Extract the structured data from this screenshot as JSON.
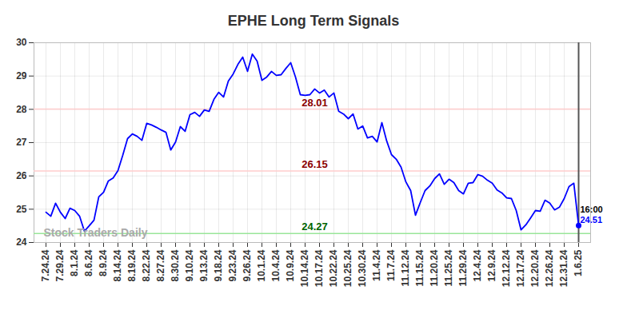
{
  "chart_data": {
    "type": "line",
    "title": "EPHE Long Term Signals",
    "categories": [
      "7.24.24",
      null,
      null,
      "7.29.24",
      null,
      null,
      "8.1.24",
      null,
      null,
      "8.6.24",
      null,
      null,
      "8.9.24",
      null,
      null,
      "8.14.24",
      null,
      null,
      "8.19.24",
      null,
      null,
      "8.22.24",
      null,
      null,
      "8.27.24",
      null,
      null,
      "8.30.24",
      null,
      null,
      "9.10.24",
      null,
      null,
      "9.13.24",
      null,
      null,
      "9.18.24",
      null,
      null,
      "9.23.24",
      null,
      null,
      "9.26.24",
      null,
      null,
      "10.1.24",
      null,
      null,
      "10.4.24",
      null,
      null,
      "10.9.24",
      null,
      null,
      "10.14.24",
      null,
      null,
      "10.17.24",
      null,
      null,
      "10.22.24",
      null,
      null,
      "10.25.24",
      null,
      null,
      "10.30.24",
      null,
      null,
      "11.4.24",
      null,
      null,
      "11.7.24",
      null,
      null,
      "11.12.24",
      null,
      null,
      "11.15.24",
      null,
      null,
      "11.20.24",
      null,
      null,
      "11.25.24",
      null,
      null,
      "11.29.24",
      null,
      null,
      "12.4.24",
      null,
      null,
      "12.9.24",
      null,
      null,
      "12.12.24",
      null,
      null,
      "12.17.24",
      null,
      null,
      "12.20.24",
      null,
      null,
      "12.26.24",
      null,
      null,
      "12.31.24",
      null,
      null,
      "1.6.25"
    ],
    "values": [
      24.91,
      24.79,
      25.18,
      24.91,
      24.72,
      25.03,
      24.96,
      24.79,
      24.34,
      24.5,
      24.67,
      25.37,
      25.51,
      25.85,
      25.94,
      26.16,
      26.62,
      27.12,
      27.26,
      27.19,
      27.07,
      27.58,
      27.53,
      27.46,
      27.38,
      27.31,
      26.78,
      27.02,
      27.48,
      27.34,
      27.84,
      27.91,
      27.79,
      27.98,
      27.94,
      28.3,
      28.51,
      28.37,
      28.85,
      29.06,
      29.35,
      29.57,
      29.14,
      29.66,
      29.45,
      28.87,
      28.97,
      29.14,
      29.02,
      29.04,
      29.23,
      29.4,
      28.97,
      28.44,
      28.42,
      28.44,
      28.61,
      28.49,
      28.58,
      28.37,
      28.49,
      27.94,
      27.86,
      27.72,
      27.86,
      27.41,
      27.5,
      27.14,
      27.19,
      27.02,
      27.6,
      27.05,
      26.64,
      26.5,
      26.26,
      25.82,
      25.56,
      24.82,
      25.2,
      25.56,
      25.7,
      25.92,
      26.06,
      25.75,
      25.9,
      25.8,
      25.56,
      25.46,
      25.78,
      25.8,
      26.04,
      25.99,
      25.87,
      25.78,
      25.58,
      25.49,
      25.34,
      25.32,
      24.96,
      24.38,
      24.53,
      24.74,
      24.96,
      24.94,
      25.27,
      25.18,
      24.98,
      25.06,
      25.32,
      25.68,
      25.78,
      24.51
    ],
    "color": "#0000ff",
    "ylim": [
      24,
      30
    ],
    "yticks": [
      24,
      25,
      26,
      27,
      28,
      29,
      30
    ],
    "grid": true,
    "reference_lines": [
      {
        "value": 28.01,
        "color": "#ffcccc",
        "label_color": "#8b0000"
      },
      {
        "value": 26.15,
        "color": "#ffcccc",
        "label_color": "#8b0000"
      },
      {
        "value": 24.27,
        "color": "#99e699",
        "label_color": "#006400"
      }
    ],
    "last_time": "16:00",
    "watermark": "Stock Traders Daily"
  }
}
